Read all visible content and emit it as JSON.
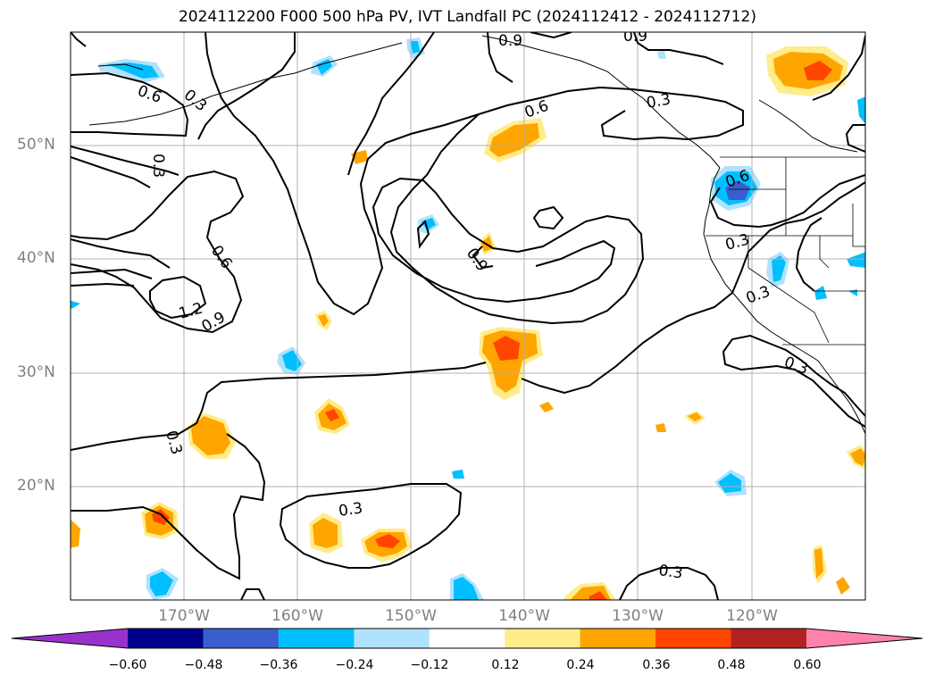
{
  "title": "2024112200 F000 500 hPa PV, IVT Landfall PC (2024112412 - 2024112712)",
  "lat_labels": [
    "50°N",
    "40°N",
    "30°N",
    "20°N"
  ],
  "lon_labels": [
    "170°W",
    "160°W",
    "150°W",
    "140°W",
    "130°W",
    "120°W"
  ],
  "contour_labels": [
    "0.9",
    "0.9",
    "0.6",
    "0.3",
    "0.6",
    "0.3",
    "0.3",
    "0.6",
    "0.6",
    "0.9",
    "0.3",
    "0.3",
    "1.2",
    "0.9",
    "0.3",
    "0.3",
    "0.3",
    "0.3"
  ],
  "colorbar": {
    "ticks": [
      "−0.60",
      "−0.48",
      "−0.36",
      "−0.24",
      "−0.12",
      "0.12",
      "0.24",
      "0.36",
      "0.48",
      "0.60"
    ],
    "colors": [
      "#9932cc",
      "#00008b",
      "#3a5fcd",
      "#00bfff",
      "#b0e2ff",
      "#ffffff",
      "#ffec8b",
      "#ffa500",
      "#ff4500",
      "#b22222",
      "#ff82ab"
    ]
  }
}
